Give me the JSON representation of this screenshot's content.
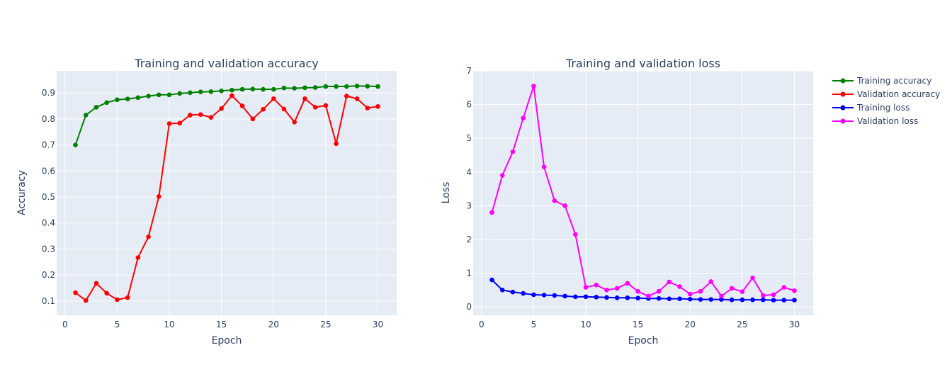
{
  "legend": [
    {
      "name": "Training accuracy",
      "color": "#008000"
    },
    {
      "name": "Validation accuracy",
      "color": "#ff0000"
    },
    {
      "name": "Training loss",
      "color": "#0000ff"
    },
    {
      "name": "Validation loss",
      "color": "#ff00ff"
    }
  ],
  "chart_data": [
    {
      "type": "line",
      "title": "Training and validation accuracy",
      "xlabel": "Epoch",
      "ylabel": "Accuracy",
      "xlim": [
        -0.8,
        31.8
      ],
      "ylim": [
        0.045,
        0.985
      ],
      "xticks": [
        0,
        5,
        10,
        15,
        20,
        25,
        30
      ],
      "yticks": [
        0.1,
        0.2,
        0.3,
        0.4,
        0.5,
        0.6,
        0.7,
        0.8,
        0.9
      ],
      "x": [
        1,
        2,
        3,
        4,
        5,
        6,
        7,
        8,
        9,
        10,
        11,
        12,
        13,
        14,
        15,
        16,
        17,
        18,
        19,
        20,
        21,
        22,
        23,
        24,
        25,
        26,
        27,
        28,
        29,
        30
      ],
      "series": [
        {
          "name": "Training accuracy",
          "color": "#008000",
          "values": [
            0.7,
            0.815,
            0.845,
            0.863,
            0.874,
            0.877,
            0.882,
            0.888,
            0.893,
            0.893,
            0.898,
            0.901,
            0.904,
            0.905,
            0.908,
            0.911,
            0.914,
            0.915,
            0.914,
            0.914,
            0.919,
            0.918,
            0.92,
            0.921,
            0.925,
            0.925,
            0.925,
            0.927,
            0.926,
            0.925
          ]
        },
        {
          "name": "Validation accuracy",
          "color": "#ff0000",
          "values": [
            0.132,
            0.102,
            0.168,
            0.13,
            0.105,
            0.113,
            0.267,
            0.347,
            0.502,
            0.782,
            0.784,
            0.815,
            0.817,
            0.806,
            0.84,
            0.89,
            0.85,
            0.8,
            0.837,
            0.878,
            0.838,
            0.788,
            0.878,
            0.845,
            0.852,
            0.705,
            0.888,
            0.878,
            0.842,
            0.848
          ]
        }
      ]
    },
    {
      "type": "line",
      "title": "Training and validation loss",
      "xlabel": "Epoch",
      "ylabel": "Loss",
      "xlim": [
        -0.8,
        31.8
      ],
      "ylim": [
        -0.25,
        7.0
      ],
      "xticks": [
        0,
        5,
        10,
        15,
        20,
        25,
        30
      ],
      "yticks": [
        0,
        1,
        2,
        3,
        4,
        5,
        6,
        7
      ],
      "x": [
        1,
        2,
        3,
        4,
        5,
        6,
        7,
        8,
        9,
        10,
        11,
        12,
        13,
        14,
        15,
        16,
        17,
        18,
        19,
        20,
        21,
        22,
        23,
        24,
        25,
        26,
        27,
        28,
        29,
        30
      ],
      "series": [
        {
          "name": "Training loss",
          "color": "#0000ff",
          "values": [
            0.8,
            0.5,
            0.44,
            0.4,
            0.36,
            0.35,
            0.34,
            0.32,
            0.3,
            0.3,
            0.29,
            0.28,
            0.27,
            0.27,
            0.26,
            0.25,
            0.25,
            0.24,
            0.24,
            0.23,
            0.22,
            0.22,
            0.22,
            0.21,
            0.21,
            0.21,
            0.21,
            0.2,
            0.2,
            0.2
          ]
        },
        {
          "name": "Validation loss",
          "color": "#ff00ff",
          "values": [
            2.8,
            3.9,
            4.6,
            5.6,
            6.55,
            4.15,
            3.15,
            3.0,
            2.15,
            0.58,
            0.65,
            0.5,
            0.55,
            0.7,
            0.46,
            0.32,
            0.46,
            0.74,
            0.6,
            0.38,
            0.46,
            0.75,
            0.32,
            0.55,
            0.45,
            0.86,
            0.34,
            0.36,
            0.58,
            0.48
          ]
        }
      ]
    }
  ]
}
